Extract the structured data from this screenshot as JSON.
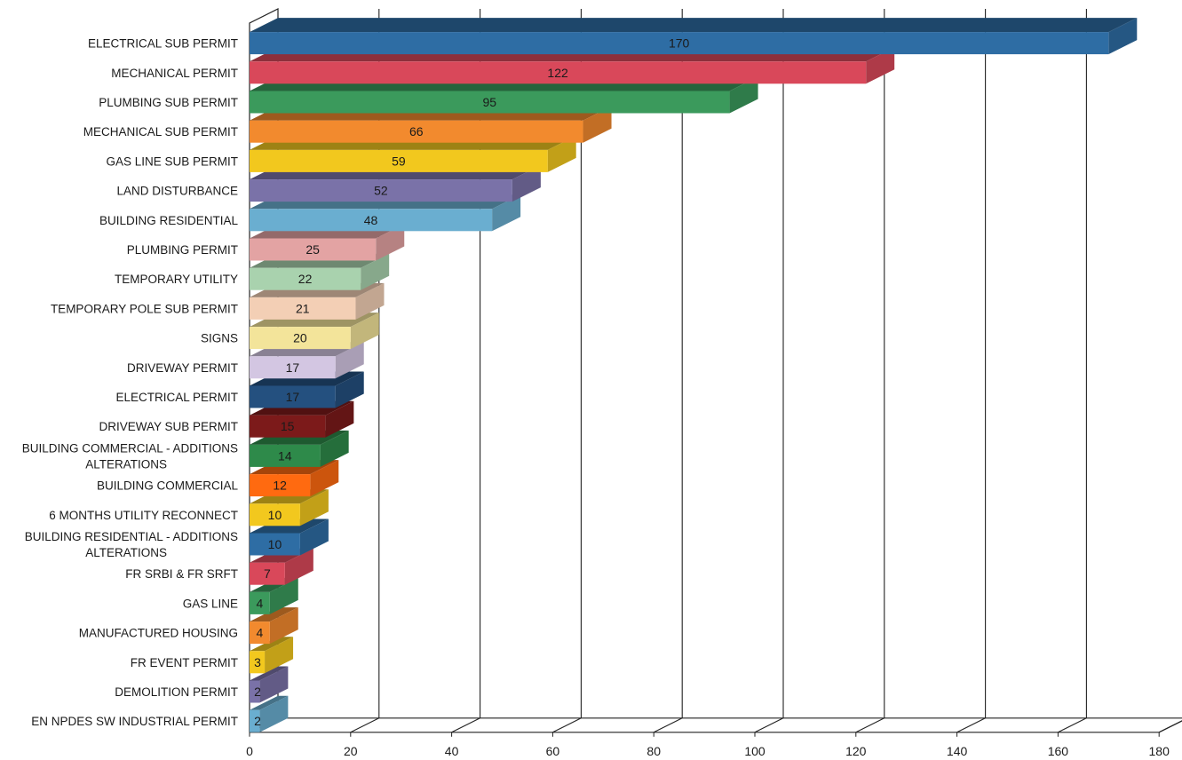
{
  "chart_data": {
    "type": "bar",
    "orientation": "horizontal",
    "style": "3d",
    "title": "",
    "xlabel": "",
    "ylabel": "",
    "xlim": [
      0,
      180
    ],
    "x_ticks": [
      "0",
      "20",
      "40",
      "60",
      "80",
      "100",
      "120",
      "140",
      "160",
      "180"
    ],
    "grid": true,
    "legend": "none",
    "categories": [
      [
        "ELECTRICAL SUB PERMIT"
      ],
      [
        "MECHANICAL PERMIT"
      ],
      [
        "PLUMBING SUB PERMIT"
      ],
      [
        "MECHANICAL SUB PERMIT"
      ],
      [
        "GAS LINE SUB PERMIT"
      ],
      [
        "LAND DISTURBANCE"
      ],
      [
        "BUILDING RESIDENTIAL"
      ],
      [
        "PLUMBING PERMIT"
      ],
      [
        "TEMPORARY UTILITY"
      ],
      [
        "TEMPORARY POLE SUB PERMIT"
      ],
      [
        "SIGNS"
      ],
      [
        "DRIVEWAY PERMIT"
      ],
      [
        "ELECTRICAL PERMIT"
      ],
      [
        "DRIVEWAY SUB PERMIT"
      ],
      [
        "BUILDING COMMERCIAL - ADDITIONS",
        "ALTERATIONS"
      ],
      [
        "BUILDING COMMERCIAL"
      ],
      [
        "6 MONTHS UTILITY RECONNECT"
      ],
      [
        "BUILDING RESIDENTIAL - ADDITIONS",
        "ALTERATIONS"
      ],
      [
        "FR SRBI & FR SRFT"
      ],
      [
        "GAS LINE"
      ],
      [
        "MANUFACTURED HOUSING"
      ],
      [
        "FR EVENT PERMIT"
      ],
      [
        "DEMOLITION PERMIT"
      ],
      [
        "EN NPDES SW INDUSTRIAL PERMIT"
      ]
    ],
    "values": [
      170,
      122,
      95,
      66,
      59,
      52,
      48,
      25,
      22,
      21,
      20,
      17,
      17,
      15,
      14,
      12,
      10,
      10,
      7,
      4,
      4,
      3,
      2,
      2
    ],
    "colors": [
      "#2e6da4",
      "#d9485a",
      "#3b9a5c",
      "#f28a2e",
      "#f2c81e",
      "#7a72a8",
      "#6aaed0",
      "#e3a3a3",
      "#a9d2ae",
      "#f3cfb5",
      "#f3e49a",
      "#d3c6e2",
      "#24507f",
      "#7c1a1a",
      "#2e8a4a",
      "#ff6a10",
      "#f2c81e",
      "#2e6da4",
      "#d9485a",
      "#3b9a5c",
      "#f28a2e",
      "#f2c81e",
      "#7a72a8",
      "#6aaed0"
    ]
  }
}
